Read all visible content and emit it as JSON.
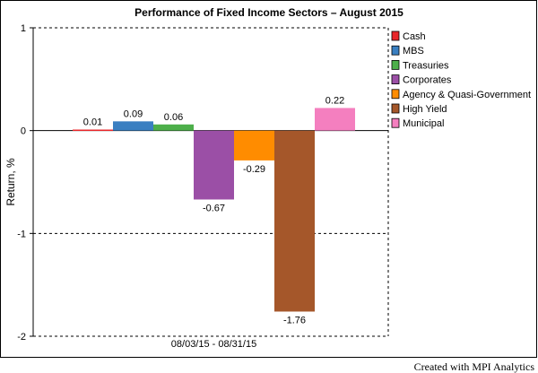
{
  "chart_data": {
    "type": "bar",
    "title": "Performance of Fixed Income Sectors – August 2015",
    "ylabel": "Return, %",
    "xlabel": "",
    "categories": [
      "08/03/15 - 08/31/15"
    ],
    "ylim": [
      -2,
      1
    ],
    "yticks": [
      1,
      0,
      -1,
      -2
    ],
    "grid": "dashed horizontal",
    "legend_position": "right",
    "series": [
      {
        "name": "Cash",
        "values": [
          0.01
        ],
        "color": "#e8262a",
        "label": "0.01"
      },
      {
        "name": "MBS",
        "values": [
          0.09
        ],
        "color": "#3a7fc1",
        "label": "0.09"
      },
      {
        "name": "Treasuries",
        "values": [
          0.06
        ],
        "color": "#4daf4a",
        "label": "0.06"
      },
      {
        "name": "Corporates",
        "values": [
          -0.67
        ],
        "color": "#9b4fa6",
        "label": "-0.67"
      },
      {
        "name": "Agency & Quasi-Government",
        "values": [
          -0.29
        ],
        "color": "#ff8c00",
        "label": "-0.29"
      },
      {
        "name": "High Yield",
        "values": [
          -1.76
        ],
        "color": "#a5572a",
        "label": "-1.76"
      },
      {
        "name": "Municipal",
        "values": [
          0.22
        ],
        "color": "#f47fbf",
        "label": "0.22"
      }
    ]
  },
  "footer": {
    "credit": "Created with MPI Analytics"
  }
}
